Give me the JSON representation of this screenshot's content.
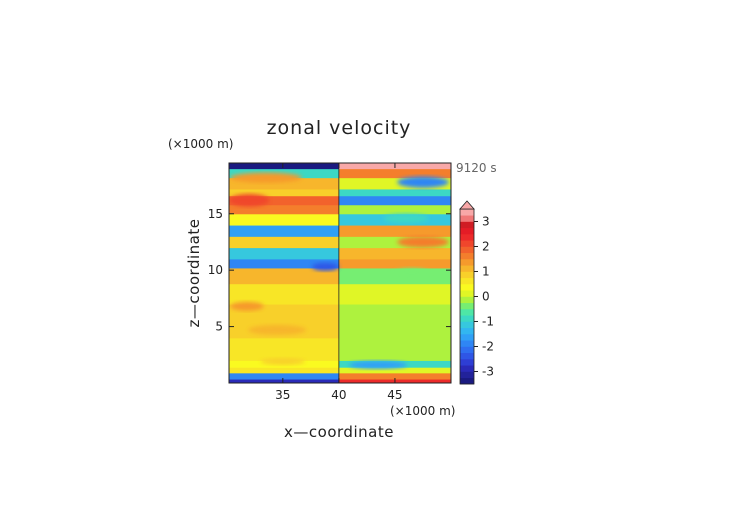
{
  "chart_data": {
    "type": "heatmap",
    "title": "zonal velocity",
    "xlabel": "x—coordinate",
    "ylabel": "z—coordinate",
    "x_unit": "(×1000 m)",
    "y_unit": "(×1000 m)",
    "time_label": "9120 s",
    "xlim": [
      30.2,
      50
    ],
    "ylim": [
      0,
      19.5
    ],
    "x_ticks": [
      35,
      40,
      45
    ],
    "y_ticks": [
      5,
      10,
      15
    ],
    "colorbar": {
      "levels": [
        {
          "value": -3.5,
          "color": "#1a1a80"
        },
        {
          "value": -3.25,
          "color": "#22229a"
        },
        {
          "value": -3.0,
          "color": "#2a2ab8"
        },
        {
          "value": -2.75,
          "color": "#2e3ed4"
        },
        {
          "value": -2.5,
          "color": "#2f56e6"
        },
        {
          "value": -2.25,
          "color": "#2f6ef0"
        },
        {
          "value": -2.0,
          "color": "#2f86f4"
        },
        {
          "value": -1.75,
          "color": "#30a0f6"
        },
        {
          "value": -1.5,
          "color": "#32b6f0"
        },
        {
          "value": -1.25,
          "color": "#36c8de"
        },
        {
          "value": -1.0,
          "color": "#3cd8c4"
        },
        {
          "value": -0.75,
          "color": "#4ee6a6"
        },
        {
          "value": -0.5,
          "color": "#76ee72"
        },
        {
          "value": -0.25,
          "color": "#aef23e"
        },
        {
          "value": 0.0,
          "color": "#e0f626"
        },
        {
          "value": 0.25,
          "color": "#fafa20"
        },
        {
          "value": 0.5,
          "color": "#f8e626"
        },
        {
          "value": 0.75,
          "color": "#f8d02a"
        },
        {
          "value": 1.0,
          "color": "#f7b62c"
        },
        {
          "value": 1.25,
          "color": "#f69a2c"
        },
        {
          "value": 1.5,
          "color": "#f47e2c"
        },
        {
          "value": 1.75,
          "color": "#f2622c"
        },
        {
          "value": 2.0,
          "color": "#f0462c"
        },
        {
          "value": 2.25,
          "color": "#ec2a2a"
        },
        {
          "value": 2.5,
          "color": "#e41c26"
        },
        {
          "value": 2.75,
          "color": "#d01c24"
        },
        {
          "value": 3.0,
          "color": "#f07878"
        },
        {
          "value": 3.25,
          "color": "#f8a8a8"
        }
      ],
      "ticks": [
        -3,
        -2,
        -1,
        0,
        1,
        2,
        3
      ],
      "extend": "both"
    },
    "field_bands": [
      {
        "z": [
          0.0,
          0.35
        ],
        "left": "#2a2ab8",
        "right": "#ec2a2a"
      },
      {
        "z": [
          0.35,
          0.9
        ],
        "left": "#2f86f4",
        "right": "#f47e2c"
      },
      {
        "z": [
          0.9,
          1.4
        ],
        "left": "#f8e626",
        "right": "#e0f626"
      },
      {
        "z": [
          1.4,
          2.0
        ],
        "left": "#fafa20",
        "right": "#3cd8c4"
      },
      {
        "z": [
          2.0,
          4.0
        ],
        "left": "#f8e626",
        "right": "#aef23e"
      },
      {
        "z": [
          4.0,
          7.0
        ],
        "left": "#f8d02a",
        "right": "#aef23e"
      },
      {
        "z": [
          7.0,
          8.8
        ],
        "left": "#f8e626",
        "right": "#e0f626"
      },
      {
        "z": [
          8.8,
          10.2
        ],
        "left": "#f7b62c",
        "right": "#76ee72"
      },
      {
        "z": [
          10.2,
          11.0
        ],
        "left": "#2f86f4",
        "right": "#f69a2c"
      },
      {
        "z": [
          11.0,
          12.0
        ],
        "left": "#36c8de",
        "right": "#f7b62c"
      },
      {
        "z": [
          12.0,
          13.0
        ],
        "left": "#f8d02a",
        "right": "#aef23e"
      },
      {
        "z": [
          13.0,
          14.0
        ],
        "left": "#30a0f6",
        "right": "#f69a2c"
      },
      {
        "z": [
          14.0,
          15.0
        ],
        "left": "#fafa20",
        "right": "#36c8de"
      },
      {
        "z": [
          15.0,
          15.8
        ],
        "left": "#f47e2c",
        "right": "#aef23e"
      },
      {
        "z": [
          15.8,
          16.6
        ],
        "left": "#f2622c",
        "right": "#2f86f4"
      },
      {
        "z": [
          16.6,
          17.2
        ],
        "left": "#f8d02a",
        "right": "#3cd8c4"
      },
      {
        "z": [
          17.2,
          18.2
        ],
        "left": "#f7b62c",
        "right": "#e0f626"
      },
      {
        "z": [
          18.2,
          19.0
        ],
        "left": "#3cd8c4",
        "right": "#f47e2c"
      },
      {
        "z": [
          19.0,
          19.5
        ],
        "left": "#1a1a80",
        "right": "#f8a8a8"
      }
    ],
    "field_blobs": [
      {
        "x": 33.5,
        "z": 18.2,
        "rx": 3.2,
        "rz": 0.45,
        "color": "#f69a2c"
      },
      {
        "x": 47.5,
        "z": 17.8,
        "rx": 2.3,
        "rz": 0.5,
        "color": "#2f86f4"
      },
      {
        "x": 32.0,
        "z": 16.2,
        "rx": 1.8,
        "rz": 0.55,
        "color": "#f0462c"
      },
      {
        "x": 38.8,
        "z": 10.3,
        "rx": 1.2,
        "rz": 0.35,
        "color": "#2f56e6"
      },
      {
        "x": 47.5,
        "z": 12.5,
        "rx": 2.3,
        "rz": 0.5,
        "color": "#f47e2c"
      },
      {
        "x": 31.8,
        "z": 6.8,
        "rx": 1.5,
        "rz": 0.4,
        "color": "#f69a2c"
      },
      {
        "x": 34.5,
        "z": 4.7,
        "rx": 2.6,
        "rz": 0.45,
        "color": "#f7b62c"
      },
      {
        "x": 43.5,
        "z": 1.6,
        "rx": 2.6,
        "rz": 0.35,
        "color": "#30a0f6"
      },
      {
        "x": 35.0,
        "z": 1.9,
        "rx": 2.0,
        "rz": 0.3,
        "color": "#f8d02a"
      },
      {
        "x": 46.5,
        "z": 9.7,
        "rx": 1.6,
        "rz": 0.45,
        "color": "#76ee72"
      },
      {
        "x": 46.0,
        "z": 14.6,
        "rx": 2.0,
        "rz": 0.4,
        "color": "#3cd8c4"
      }
    ]
  }
}
